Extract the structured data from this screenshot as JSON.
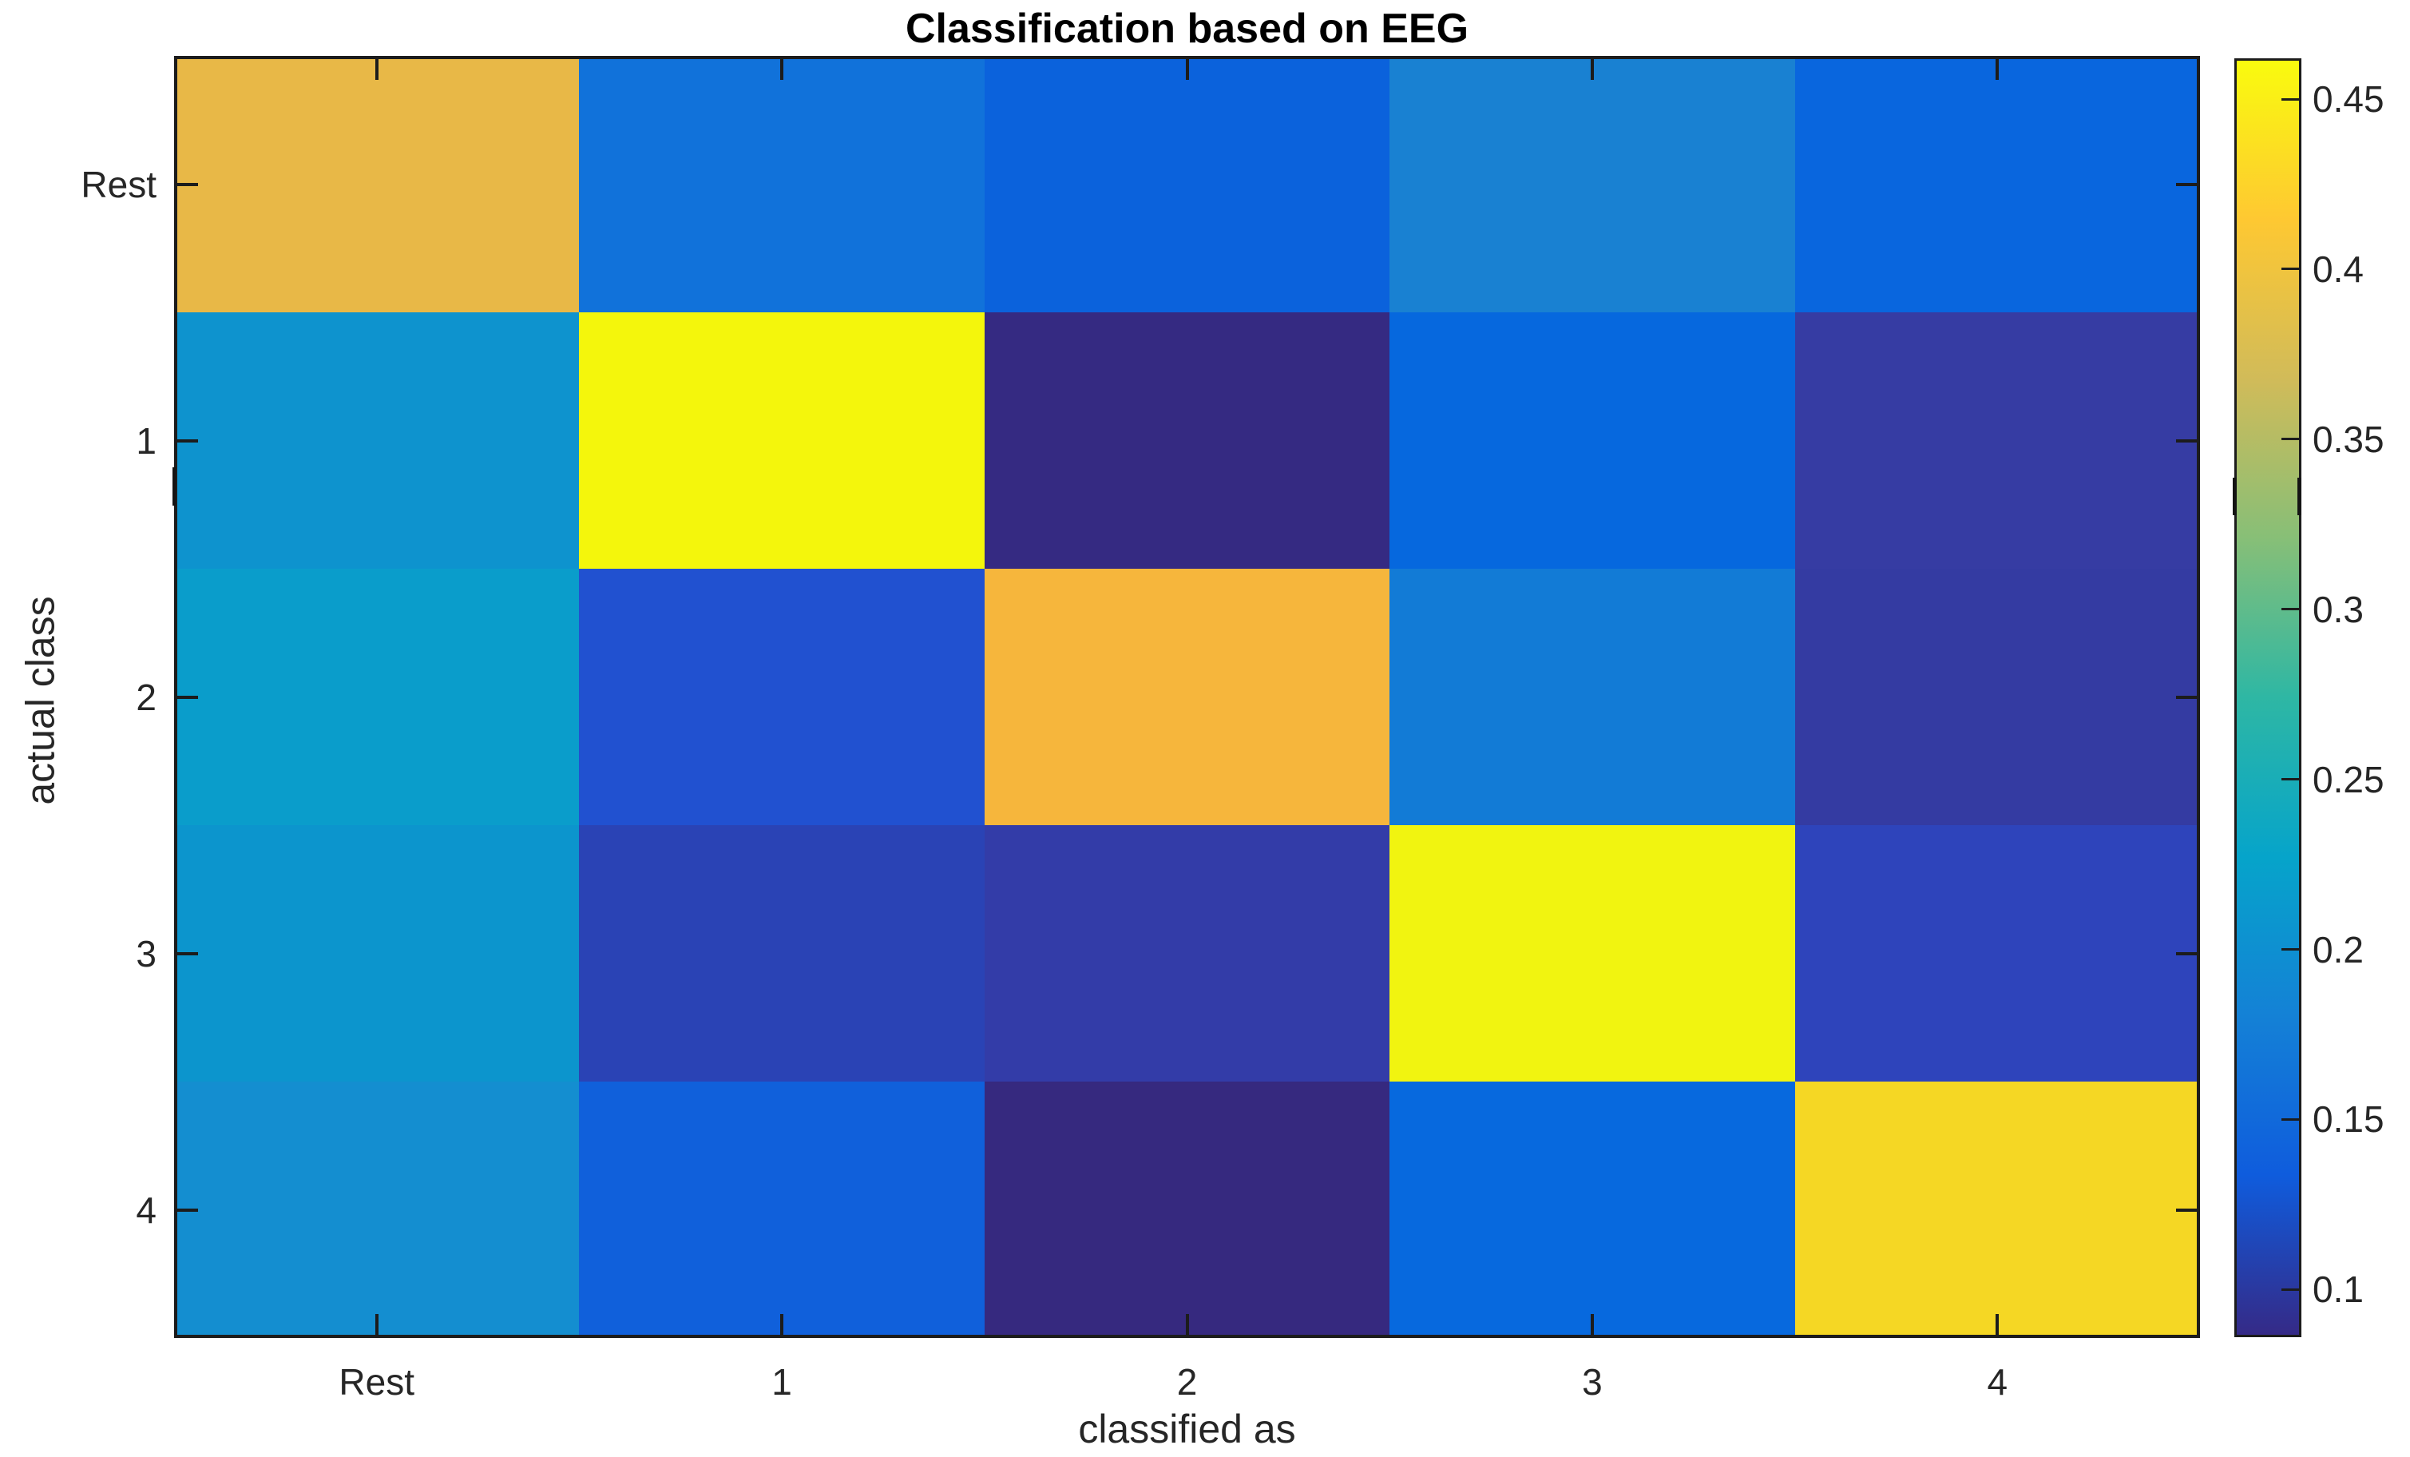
{
  "title": "Classification based on EEG",
  "x_axis": {
    "label": "classified as",
    "tick_labels": [
      "Rest",
      "1",
      "2",
      "3",
      "4"
    ]
  },
  "y_axis": {
    "label": "actual class",
    "tick_labels": [
      "Rest",
      "1",
      "2",
      "3",
      "4"
    ]
  },
  "colors": {
    "axis": "#1c1c1c",
    "text": "#262626",
    "title": "#000000",
    "background": "#ffffff"
  },
  "chart_data": {
    "type": "heatmap",
    "title": "Classification based on EEG",
    "xlabel": "classified as",
    "ylabel": "actual class",
    "x_categories": [
      "Rest",
      "1",
      "2",
      "3",
      "4"
    ],
    "y_categories": [
      "Rest",
      "1",
      "2",
      "3",
      "4"
    ],
    "values": [
      [
        0.39,
        0.16,
        0.14,
        0.18,
        0.145
      ],
      [
        0.2,
        0.46,
        0.09,
        0.145,
        0.105
      ],
      [
        0.215,
        0.125,
        0.405,
        0.17,
        0.105
      ],
      [
        0.205,
        0.11,
        0.105,
        0.46,
        0.115
      ],
      [
        0.195,
        0.135,
        0.09,
        0.15,
        0.43
      ]
    ],
    "cell_colors": [
      [
        "#e8b847",
        "#1172da",
        "#0b62dc",
        "#1981d2",
        "#0966de"
      ],
      [
        "#0e93ce",
        "#f4f60c",
        "#352a82",
        "#0668de",
        "#363ca3"
      ],
      [
        "#0a9dcb",
        "#2151d0",
        "#f6b63c",
        "#127bd6",
        "#343ba2"
      ],
      [
        "#0c95cd",
        "#2a43b5",
        "#333ca8",
        "#f1f410",
        "#2e44bb"
      ],
      [
        "#148ed0",
        "#1060db",
        "#36297f",
        "#0769de",
        "#f5d724"
      ]
    ],
    "colormap": "parula",
    "color_range": [
      0.086,
      0.462
    ],
    "colorbar": {
      "tick_labels": [
        "0.45",
        "0.4",
        "0.35",
        "0.3",
        "0.25",
        "0.2",
        "0.15",
        "0.1"
      ],
      "tick_values": [
        0.45,
        0.4,
        0.35,
        0.3,
        0.25,
        0.2,
        0.15,
        0.1
      ],
      "gradient_stops": [
        {
          "pos": 0.0,
          "color": "#352a87"
        },
        {
          "pos": 0.125,
          "color": "#0f5cdd"
        },
        {
          "pos": 0.25,
          "color": "#1481d6"
        },
        {
          "pos": 0.375,
          "color": "#06a4ca"
        },
        {
          "pos": 0.5,
          "color": "#2eb7a4"
        },
        {
          "pos": 0.625,
          "color": "#87bf77"
        },
        {
          "pos": 0.75,
          "color": "#d1bb59"
        },
        {
          "pos": 0.875,
          "color": "#fec832"
        },
        {
          "pos": 1.0,
          "color": "#f9fb0e"
        }
      ]
    },
    "grid": false,
    "legend": false
  }
}
